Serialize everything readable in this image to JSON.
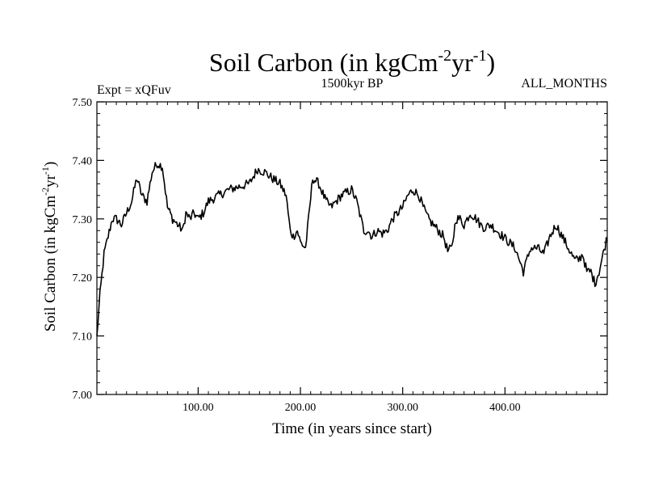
{
  "chart_data": {
    "type": "line",
    "title": "Soil Carbon (in kgCm",
    "title_units": {
      "sup1": "-2",
      "mid": "yr",
      "sup2": "-1",
      "close": ")"
    },
    "subtitle_left": "Expt = xQFuv",
    "subtitle_center": "1500kyr BP",
    "subtitle_right": "ALL_MONTHS",
    "xlabel": "Time (in years since start)",
    "ylabel": "Soil Carbon (in kgCm",
    "ylabel_units": {
      "sup1": "-2",
      "mid": "yr",
      "sup2": "-1",
      "close": ")"
    },
    "xlim": [
      1,
      500
    ],
    "ylim": [
      7.0,
      7.5
    ],
    "x_ticks": [
      100,
      200,
      300,
      400
    ],
    "x_tick_labels": [
      "100.00",
      "200.00",
      "300.00",
      "400.00"
    ],
    "y_ticks": [
      7.0,
      7.1,
      7.2,
      7.3,
      7.4,
      7.5
    ],
    "y_tick_labels": [
      "7.00",
      "7.10",
      "7.20",
      "7.30",
      "7.40",
      "7.50"
    ],
    "grid": false,
    "series": [
      {
        "name": "Soil Carbon",
        "color": "#000000",
        "noise": 0.008,
        "x": [
          1,
          4,
          8,
          12,
          16,
          20,
          25,
          30,
          35,
          40,
          45,
          50,
          55,
          60,
          65,
          70,
          75,
          80,
          85,
          88,
          92,
          96,
          100,
          105,
          110,
          120,
          130,
          140,
          150,
          158,
          165,
          172,
          180,
          186,
          190,
          193,
          197,
          200,
          205,
          208,
          212,
          218,
          225,
          230,
          235,
          240,
          245,
          250,
          255,
          262,
          266,
          270,
          275,
          280,
          285,
          290,
          295,
          300,
          305,
          310,
          316,
          320,
          325,
          330,
          335,
          340,
          344,
          348,
          352,
          356,
          360,
          366,
          372,
          376,
          380,
          386,
          392,
          398,
          404,
          410,
          418,
          425,
          432,
          438,
          444,
          450,
          456,
          462,
          468,
          472,
          476,
          480,
          484,
          488,
          492,
          496,
          500
        ],
        "values": [
          7.1,
          7.17,
          7.24,
          7.27,
          7.3,
          7.3,
          7.29,
          7.31,
          7.33,
          7.37,
          7.34,
          7.33,
          7.38,
          7.395,
          7.39,
          7.32,
          7.3,
          7.29,
          7.28,
          7.31,
          7.3,
          7.31,
          7.3,
          7.31,
          7.33,
          7.34,
          7.35,
          7.355,
          7.36,
          7.385,
          7.38,
          7.37,
          7.36,
          7.34,
          7.28,
          7.27,
          7.28,
          7.26,
          7.25,
          7.3,
          7.37,
          7.36,
          7.33,
          7.32,
          7.33,
          7.34,
          7.345,
          7.35,
          7.33,
          7.28,
          7.28,
          7.27,
          7.28,
          7.275,
          7.28,
          7.3,
          7.31,
          7.32,
          7.34,
          7.35,
          7.34,
          7.32,
          7.3,
          7.29,
          7.28,
          7.27,
          7.245,
          7.25,
          7.3,
          7.3,
          7.29,
          7.31,
          7.3,
          7.29,
          7.285,
          7.29,
          7.28,
          7.27,
          7.26,
          7.25,
          7.21,
          7.25,
          7.25,
          7.24,
          7.27,
          7.29,
          7.27,
          7.25,
          7.23,
          7.23,
          7.24,
          7.21,
          7.21,
          7.19,
          7.21,
          7.24,
          7.27
        ]
      }
    ]
  }
}
